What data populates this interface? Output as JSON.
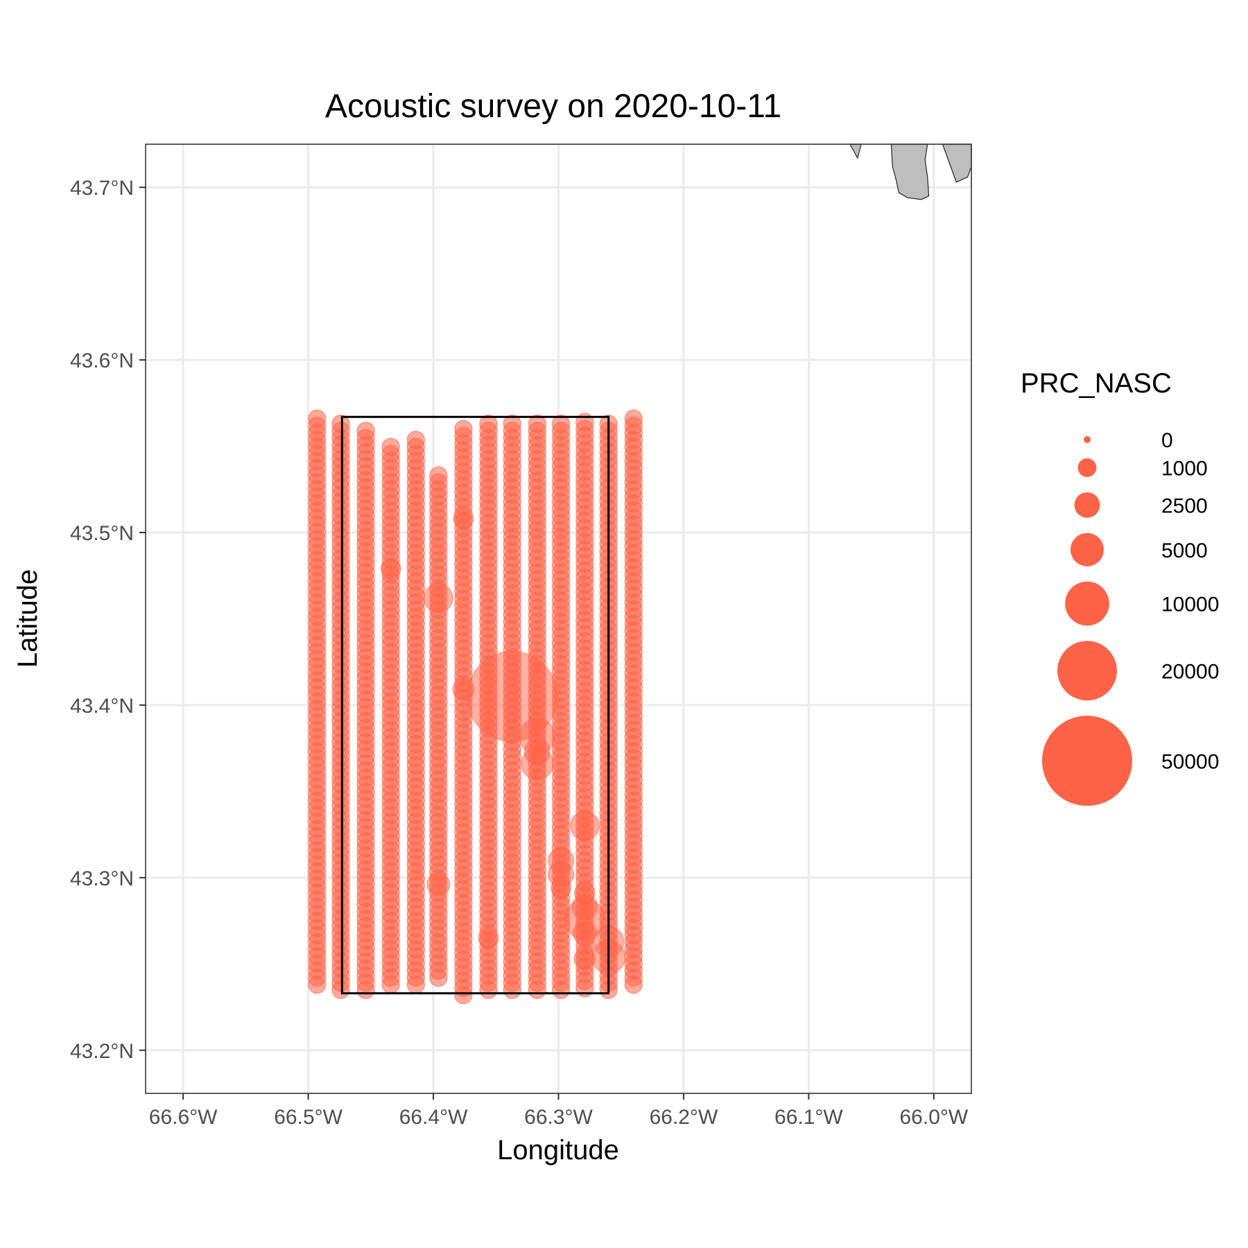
{
  "chart_data": {
    "type": "scatter",
    "title": "Acoustic survey on 2020-10-11",
    "xlabel": "Longitude",
    "ylabel": "Latitude",
    "xlim": [
      -66.63,
      -65.97
    ],
    "ylim": [
      43.175,
      43.725
    ],
    "x_ticks": [
      -66.6,
      -66.5,
      -66.4,
      -66.3,
      -66.2,
      -66.1,
      -66.0
    ],
    "x_tick_labels": [
      "66.6°W",
      "66.5°W",
      "66.4°W",
      "66.3°W",
      "66.2°W",
      "66.1°W",
      "66.0°W"
    ],
    "y_ticks": [
      43.2,
      43.3,
      43.4,
      43.5,
      43.6,
      43.7
    ],
    "y_tick_labels": [
      "43.2°N",
      "43.3°N",
      "43.4°N",
      "43.5°N",
      "43.6°N",
      "43.7°N"
    ],
    "grid": true,
    "point_color": "#FF6347",
    "size_variable": "PRC_NASC",
    "legend": {
      "title": "PRC_NASC",
      "placement": "right",
      "breaks": [
        0,
        1000,
        2500,
        5000,
        10000,
        20000,
        50000
      ],
      "labels": [
        "0",
        "1000",
        "2500",
        "5000",
        "10000",
        "20000",
        "50000"
      ]
    },
    "survey_box": {
      "lon": [
        -66.473,
        -66.26
      ],
      "lat": [
        43.233,
        43.567
      ]
    },
    "transects": [
      {
        "lon": -66.493,
        "lat_min": 43.238,
        "lat_max": 43.569
      },
      {
        "lon": -66.474,
        "lat_min": 43.235,
        "lat_max": 43.567
      },
      {
        "lon": -66.454,
        "lat_min": 43.235,
        "lat_max": 43.562
      },
      {
        "lon": -66.434,
        "lat_min": 43.238,
        "lat_max": 43.551
      },
      {
        "lon": -66.414,
        "lat_min": 43.238,
        "lat_max": 43.555
      },
      {
        "lon": -66.396,
        "lat_min": 43.242,
        "lat_max": 43.535
      },
      {
        "lon": -66.376,
        "lat_min": 43.232,
        "lat_max": 43.564
      },
      {
        "lon": -66.356,
        "lat_min": 43.235,
        "lat_max": 43.564
      },
      {
        "lon": -66.337,
        "lat_min": 43.235,
        "lat_max": 43.563
      },
      {
        "lon": -66.317,
        "lat_min": 43.235,
        "lat_max": 43.565
      },
      {
        "lon": -66.298,
        "lat_min": 43.235,
        "lat_max": 43.566
      },
      {
        "lon": -66.279,
        "lat_min": 43.236,
        "lat_max": 43.564
      },
      {
        "lon": -66.26,
        "lat_min": 43.235,
        "lat_max": 43.563
      },
      {
        "lon": -66.24,
        "lat_min": 43.238,
        "lat_max": 43.567
      }
    ],
    "background_nasc": 800,
    "hotspots": [
      {
        "lon": -66.337,
        "lat": 43.405,
        "nasc": 50000
      },
      {
        "lon": -66.317,
        "lat": 43.382,
        "nasc": 6000
      },
      {
        "lon": -66.317,
        "lat": 43.366,
        "nasc": 4500
      },
      {
        "lon": -66.317,
        "lat": 43.373,
        "nasc": 2500
      },
      {
        "lon": -66.396,
        "lat": 43.462,
        "nasc": 3500
      },
      {
        "lon": -66.279,
        "lat": 43.33,
        "nasc": 3500
      },
      {
        "lon": -66.298,
        "lat": 43.31,
        "nasc": 2500
      },
      {
        "lon": -66.298,
        "lat": 43.302,
        "nasc": 2500
      },
      {
        "lon": -66.396,
        "lat": 43.296,
        "nasc": 1800
      },
      {
        "lon": -66.279,
        "lat": 43.276,
        "nasc": 8000
      },
      {
        "lon": -66.279,
        "lat": 43.283,
        "nasc": 2500
      },
      {
        "lon": -66.279,
        "lat": 43.268,
        "nasc": 2000
      },
      {
        "lon": -66.26,
        "lat": 43.263,
        "nasc": 4000
      },
      {
        "lon": -66.26,
        "lat": 43.254,
        "nasc": 5000
      },
      {
        "lon": -66.376,
        "lat": 43.409,
        "nasc": 1500
      },
      {
        "lon": -66.376,
        "lat": 43.508,
        "nasc": 1200
      },
      {
        "lon": -66.434,
        "lat": 43.479,
        "nasc": 1200
      },
      {
        "lon": -66.356,
        "lat": 43.265,
        "nasc": 1200
      },
      {
        "lon": -66.298,
        "lat": 43.294,
        "nasc": 1200
      },
      {
        "lon": -66.279,
        "lat": 43.253,
        "nasc": 1500
      },
      {
        "lon": -66.279,
        "lat": 43.291,
        "nasc": 1300
      }
    ],
    "land_fill": "#bebebe",
    "land": [
      [
        [
          -66.067,
          43.725
        ],
        [
          -66.061,
          43.717
        ],
        [
          -66.058,
          43.725
        ]
      ],
      [
        [
          -66.034,
          43.725
        ],
        [
          -66.033,
          43.712
        ],
        [
          -66.03,
          43.704
        ],
        [
          -66.028,
          43.697
        ],
        [
          -66.021,
          43.694
        ],
        [
          -66.01,
          43.693
        ],
        [
          -66.004,
          43.695
        ],
        [
          -66.005,
          43.706
        ],
        [
          -66.007,
          43.716
        ],
        [
          -66.005,
          43.725
        ]
      ],
      [
        [
          -65.993,
          43.725
        ],
        [
          -65.982,
          43.703
        ],
        [
          -65.973,
          43.706
        ],
        [
          -65.97,
          43.712
        ],
        [
          -65.97,
          43.725
        ]
      ]
    ]
  }
}
